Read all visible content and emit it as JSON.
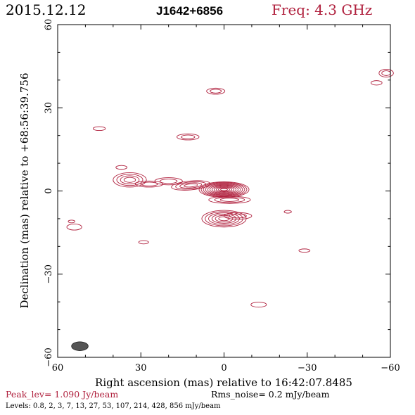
{
  "header": {
    "date": "2015.12.12",
    "source": "J1642+6856",
    "freq": "Freq: 4.3 GHz"
  },
  "footer": {
    "peak": "Peak_lev=  1.090 Jy/beam",
    "rms": "Rms_noise=  0.2 mJy/beam",
    "levels": "Levels: 0.8,   2,   3,   7,  13,  27,   53, 107, 214, 428, 856 mJy/beam"
  },
  "colors": {
    "contour": "#b0213e",
    "axis": "#000000",
    "beam": "#555555"
  },
  "chart_data": {
    "type": "contour",
    "xlabel": "Right ascension (mas) relative to 16:42:07.8485",
    "ylabel": "Declination (mas) relative to +68:56:39.756",
    "xlim": [
      60,
      -60
    ],
    "ylim": [
      -60,
      60
    ],
    "xticks": [
      60,
      30,
      0,
      -30,
      -60
    ],
    "yticks": [
      -60,
      -30,
      0,
      30,
      60
    ],
    "xtick_labels": [
      "60",
      "30",
      "0",
      "−30",
      "−60"
    ],
    "ytick_labels": [
      "−60",
      "−30",
      "0",
      "30",
      "60"
    ],
    "beam": {
      "x": 52,
      "y": -56,
      "major": 3.0,
      "minor": 1.6,
      "pa": 0
    },
    "components": [
      {
        "x": 0,
        "y": 0.5,
        "rx": 9.0,
        "ry": 2.8,
        "nlev": 11,
        "angle": 0
      },
      {
        "x": -2,
        "y": -3.2,
        "rx": 7.5,
        "ry": 1.3,
        "nlev": 3,
        "angle": 0
      },
      {
        "x": 0,
        "y": -10,
        "rx": 8.0,
        "ry": 3.0,
        "nlev": 6,
        "angle": 0
      },
      {
        "x": -5,
        "y": -9,
        "rx": 5.0,
        "ry": 1.2,
        "nlev": 2,
        "angle": 0
      },
      {
        "x": 12,
        "y": 2,
        "rx": 7.0,
        "ry": 1.6,
        "nlev": 4,
        "angle": 5
      },
      {
        "x": 20,
        "y": 3.5,
        "rx": 5.0,
        "ry": 1.3,
        "nlev": 2,
        "angle": 0
      },
      {
        "x": 27,
        "y": 2.5,
        "rx": 5.0,
        "ry": 1.1,
        "nlev": 2,
        "angle": 0
      },
      {
        "x": 34,
        "y": 4,
        "rx": 6.0,
        "ry": 2.6,
        "nlev": 4,
        "angle": 0
      },
      {
        "x": 37,
        "y": 8.5,
        "rx": 2.0,
        "ry": 0.7,
        "nlev": 1,
        "angle": 0
      },
      {
        "x": 13,
        "y": 19.5,
        "rx": 4.0,
        "ry": 1.1,
        "nlev": 2,
        "angle": 0
      },
      {
        "x": 3,
        "y": 36,
        "rx": 3.3,
        "ry": 1.1,
        "nlev": 2,
        "angle": 0
      },
      {
        "x": 45,
        "y": 22.5,
        "rx": 2.2,
        "ry": 0.7,
        "nlev": 1,
        "angle": 0
      },
      {
        "x": 54,
        "y": -13,
        "rx": 2.7,
        "ry": 1.1,
        "nlev": 1,
        "angle": 0
      },
      {
        "x": 55,
        "y": -11,
        "rx": 1.2,
        "ry": 0.5,
        "nlev": 1,
        "angle": 0
      },
      {
        "x": 29,
        "y": -18.5,
        "rx": 1.8,
        "ry": 0.6,
        "nlev": 1,
        "angle": 0
      },
      {
        "x": -23,
        "y": -7.5,
        "rx": 1.3,
        "ry": 0.5,
        "nlev": 1,
        "angle": 0
      },
      {
        "x": -29,
        "y": -21.5,
        "rx": 2.0,
        "ry": 0.6,
        "nlev": 1,
        "angle": 0
      },
      {
        "x": -12.5,
        "y": -41,
        "rx": 2.8,
        "ry": 0.9,
        "nlev": 1,
        "angle": 0
      },
      {
        "x": -55,
        "y": 39,
        "rx": 2.0,
        "ry": 0.8,
        "nlev": 1,
        "angle": 0
      },
      {
        "x": -58.5,
        "y": 42.5,
        "rx": 2.6,
        "ry": 1.4,
        "nlev": 2,
        "angle": 0
      }
    ]
  }
}
